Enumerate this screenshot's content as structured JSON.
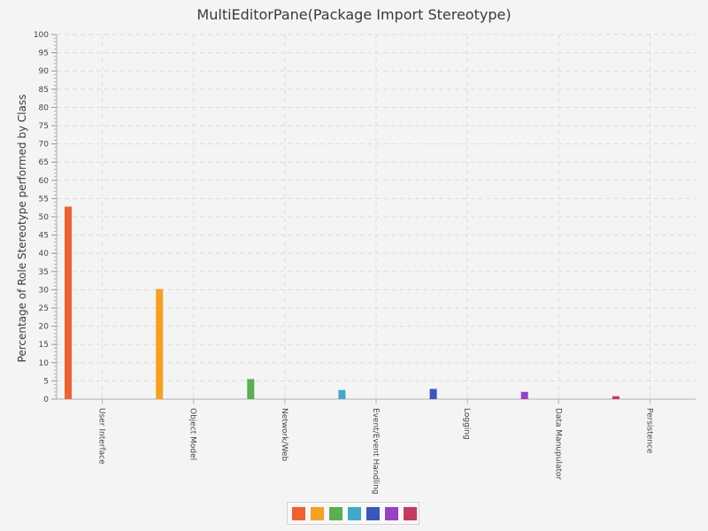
{
  "chart_data": {
    "type": "bar",
    "title": "MultiEditorPane(Package Import Stereotype)",
    "xlabel": "",
    "ylabel": "Percentage of Role Stereotype performed by Class",
    "ylim": [
      0,
      100
    ],
    "ytick_step": 5,
    "grid": true,
    "legend_position": "bottom-center",
    "categories": [
      "User Interface",
      "Object Model",
      "Network/Web",
      "Event/Event Handling",
      "Logging",
      "Data Manupulator",
      "Persistence"
    ],
    "values": [
      52.8,
      30.2,
      5.5,
      2.5,
      2.8,
      2.0,
      0.8
    ],
    "colors": [
      "#f06030",
      "#f8a020",
      "#58b050",
      "#40a8c8",
      "#3858c0",
      "#9840c8",
      "#c83860"
    ]
  }
}
